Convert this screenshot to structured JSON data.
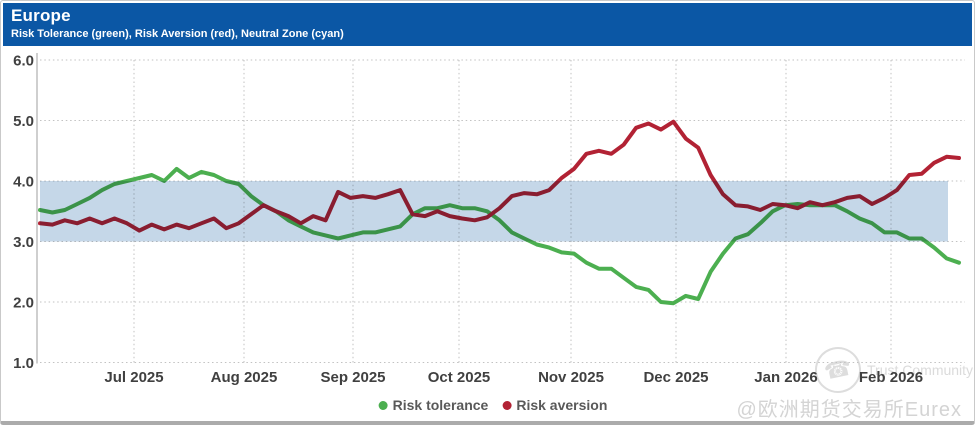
{
  "header": {
    "title": "Europe",
    "subtitle": "Risk Tolerance (green), Risk Aversion (red), Neutral Zone (cyan)"
  },
  "chart_data": {
    "type": "line",
    "title": "Europe",
    "subtitle": "Risk Tolerance (green), Risk Aversion (red), Neutral Zone (cyan)",
    "ylim": [
      1.0,
      6.0
    ],
    "ytick_labels": [
      "6.0",
      "5.0",
      "4.0",
      "3.0",
      "2.0",
      "1.0"
    ],
    "ytick_values": [
      6.0,
      5.0,
      4.0,
      3.0,
      2.0,
      1.0
    ],
    "xtick_labels": [
      "Jul 2025",
      "Aug 2025",
      "Sep 2025",
      "Oct 2025",
      "Nov 2025",
      "Dec 2025",
      "Jan 2026",
      "Feb 2026"
    ],
    "x_span": {
      "start": "2025-06-05",
      "end": "2026-02-19",
      "sampling": "75 evenly spaced points"
    },
    "grid": "dotted",
    "legend_position": "bottom-center",
    "neutral_zone": {
      "label": "Neutral Zone",
      "from": 3.0,
      "to": 4.0
    },
    "series": [
      {
        "name": "Risk tolerance",
        "color": "#4CAF50",
        "values": [
          3.52,
          3.48,
          3.52,
          3.62,
          3.72,
          3.85,
          3.95,
          4.0,
          4.05,
          4.1,
          4.0,
          4.2,
          4.05,
          4.15,
          4.1,
          4.0,
          3.95,
          3.75,
          3.6,
          3.5,
          3.35,
          3.25,
          3.15,
          3.1,
          3.05,
          3.1,
          3.15,
          3.15,
          3.2,
          3.25,
          3.45,
          3.55,
          3.55,
          3.6,
          3.55,
          3.55,
          3.5,
          3.35,
          3.15,
          3.05,
          2.95,
          2.9,
          2.82,
          2.8,
          2.65,
          2.55,
          2.55,
          2.4,
          2.25,
          2.2,
          2.0,
          1.98,
          2.1,
          2.05,
          2.5,
          2.8,
          3.05,
          3.12,
          3.3,
          3.5,
          3.6,
          3.62,
          3.6,
          3.6,
          3.6,
          3.5,
          3.38,
          3.3,
          3.15,
          3.15,
          3.05,
          3.05,
          2.9,
          2.72,
          2.65
        ]
      },
      {
        "name": "Risk aversion",
        "color": "#B22234",
        "values": [
          3.3,
          3.28,
          3.35,
          3.3,
          3.38,
          3.3,
          3.38,
          3.3,
          3.18,
          3.28,
          3.2,
          3.28,
          3.22,
          3.3,
          3.38,
          3.22,
          3.3,
          3.45,
          3.6,
          3.5,
          3.42,
          3.3,
          3.42,
          3.35,
          3.82,
          3.72,
          3.75,
          3.72,
          3.78,
          3.85,
          3.45,
          3.42,
          3.5,
          3.42,
          3.38,
          3.35,
          3.4,
          3.55,
          3.75,
          3.8,
          3.78,
          3.85,
          4.05,
          4.2,
          4.45,
          4.5,
          4.45,
          4.6,
          4.88,
          4.95,
          4.85,
          4.98,
          4.7,
          4.55,
          4.1,
          3.78,
          3.6,
          3.58,
          3.52,
          3.62,
          3.6,
          3.55,
          3.65,
          3.6,
          3.65,
          3.72,
          3.75,
          3.62,
          3.72,
          3.85,
          4.1,
          4.12,
          4.3,
          4.4,
          4.38
        ]
      }
    ]
  },
  "colors": {
    "header_bg": "#0B57A5",
    "header_text": "#FFFFFF",
    "neutral_zone_band": "#C5D7E8",
    "risk_tolerance_green": "#4CAF50",
    "risk_aversion_red": "#B22234",
    "gridline": "#C2C2C2",
    "axis_text": "#404040",
    "legend_text": "#595959"
  },
  "watermark": {
    "community": "Trust Community",
    "account": "@欧洲期货交易所Eurex"
  }
}
